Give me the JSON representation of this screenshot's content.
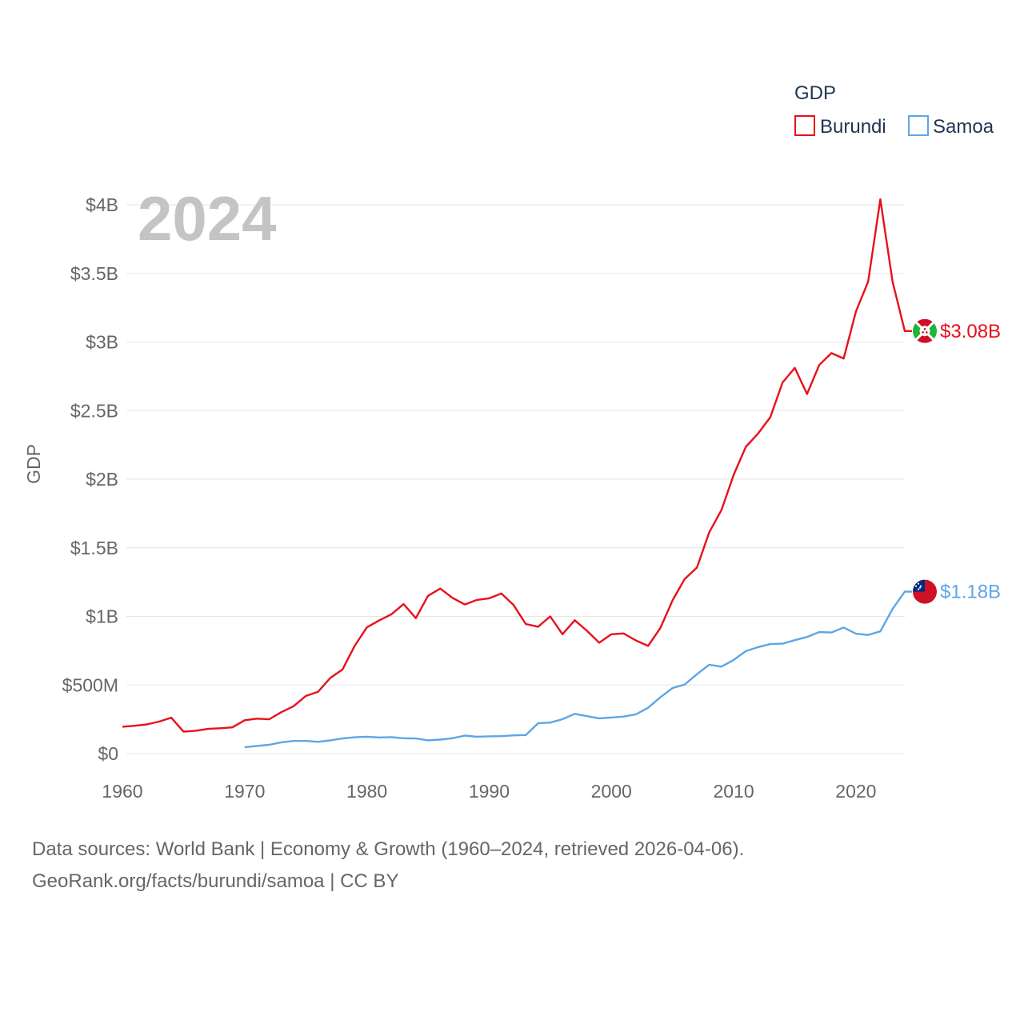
{
  "chart_data": {
    "type": "line",
    "title": "",
    "highlight_year": "2024",
    "legend_title": "GDP",
    "ylabel": "GDP",
    "xlabel": "",
    "xlim": [
      1960,
      2024
    ],
    "ylim": [
      0,
      4000000000
    ],
    "x_ticks": [
      {
        "value": 1960,
        "label": "1960"
      },
      {
        "value": 1970,
        "label": "1970"
      },
      {
        "value": 1980,
        "label": "1980"
      },
      {
        "value": 1990,
        "label": "1990"
      },
      {
        "value": 2000,
        "label": "2000"
      },
      {
        "value": 2010,
        "label": "2010"
      },
      {
        "value": 2020,
        "label": "2020"
      }
    ],
    "y_ticks": [
      {
        "value": 0,
        "label": "$0"
      },
      {
        "value": 500000000,
        "label": "$500M"
      },
      {
        "value": 1000000000,
        "label": "$1B"
      },
      {
        "value": 1500000000,
        "label": "$1.5B"
      },
      {
        "value": 2000000000,
        "label": "$2B"
      },
      {
        "value": 2500000000,
        "label": "$2.5B"
      },
      {
        "value": 3000000000,
        "label": "$3B"
      },
      {
        "value": 3500000000,
        "label": "$3.5B"
      },
      {
        "value": 4000000000,
        "label": "$4B"
      }
    ],
    "series": [
      {
        "name": "Burundi",
        "color": "#e8101a",
        "end_label": "$3.08B",
        "flag": "burundi-flag",
        "x": [
          1960,
          1961,
          1962,
          1963,
          1964,
          1965,
          1966,
          1967,
          1968,
          1969,
          1970,
          1971,
          1972,
          1973,
          1974,
          1975,
          1976,
          1977,
          1978,
          1979,
          1980,
          1981,
          1982,
          1983,
          1984,
          1985,
          1986,
          1987,
          1988,
          1989,
          1990,
          1991,
          1992,
          1993,
          1994,
          1995,
          1996,
          1997,
          1998,
          1999,
          2000,
          2001,
          2002,
          2003,
          2004,
          2005,
          2006,
          2007,
          2008,
          2009,
          2010,
          2011,
          2012,
          2013,
          2014,
          2015,
          2016,
          2017,
          2018,
          2019,
          2020,
          2021,
          2022,
          2023,
          2024
        ],
        "values": [
          196000000,
          203000000,
          213000000,
          233000000,
          262000000,
          160000000,
          167000000,
          180000000,
          185000000,
          191000000,
          243000000,
          255000000,
          250000000,
          302000000,
          345000000,
          420000000,
          450000000,
          551000000,
          613000000,
          785000000,
          920000000,
          970000000,
          1015000000,
          1090000000,
          987000000,
          1150000000,
          1203000000,
          1135000000,
          1087000000,
          1120000000,
          1132000000,
          1167000000,
          1083000000,
          944000000,
          925000000,
          1000000000,
          870000000,
          972000000,
          895000000,
          808000000,
          870000000,
          876000000,
          825000000,
          785000000,
          915000000,
          1117000000,
          1273000000,
          1356000000,
          1612000000,
          1775000000,
          2032000000,
          2236000000,
          2333000000,
          2452000000,
          2705000000,
          2811000000,
          2621000000,
          2832000000,
          2919000000,
          2880000000,
          3222000000,
          3440000000,
          4040000000,
          3440000000,
          3080000000
        ]
      },
      {
        "name": "Samoa",
        "color": "#5da6e6",
        "end_label": "$1.18B",
        "flag": "samoa-flag",
        "x": [
          1970,
          1971,
          1972,
          1973,
          1974,
          1975,
          1976,
          1977,
          1978,
          1979,
          1980,
          1981,
          1982,
          1983,
          1984,
          1985,
          1986,
          1987,
          1988,
          1989,
          1990,
          1991,
          1992,
          1993,
          1994,
          1995,
          1996,
          1997,
          1998,
          1999,
          2000,
          2001,
          2002,
          2003,
          2004,
          2005,
          2006,
          2007,
          2008,
          2009,
          2010,
          2011,
          2012,
          2013,
          2014,
          2015,
          2016,
          2017,
          2018,
          2019,
          2020,
          2021,
          2022,
          2023,
          2024
        ],
        "values": [
          46000000,
          56000000,
          64000000,
          82000000,
          92000000,
          93000000,
          86000000,
          96000000,
          110000000,
          119000000,
          123000000,
          118000000,
          120000000,
          112000000,
          110000000,
          97000000,
          102000000,
          112000000,
          131000000,
          123000000,
          126000000,
          127000000,
          133000000,
          135000000,
          221000000,
          226000000,
          251000000,
          290000000,
          273000000,
          257000000,
          263000000,
          270000000,
          286000000,
          334000000,
          410000000,
          478000000,
          503000000,
          579000000,
          648000000,
          634000000,
          683000000,
          747000000,
          776000000,
          798000000,
          801000000,
          827000000,
          850000000,
          886000000,
          883000000,
          919000000,
          874000000,
          865000000,
          891000000,
          1054000000,
          1180000000
        ]
      }
    ]
  },
  "source": {
    "line1": "Data sources: World Bank | Economy & Growth (1960–2024, retrieved 2026-04-06).",
    "line2": "GeoRank.org/facts/burundi/samoa | CC BY"
  }
}
